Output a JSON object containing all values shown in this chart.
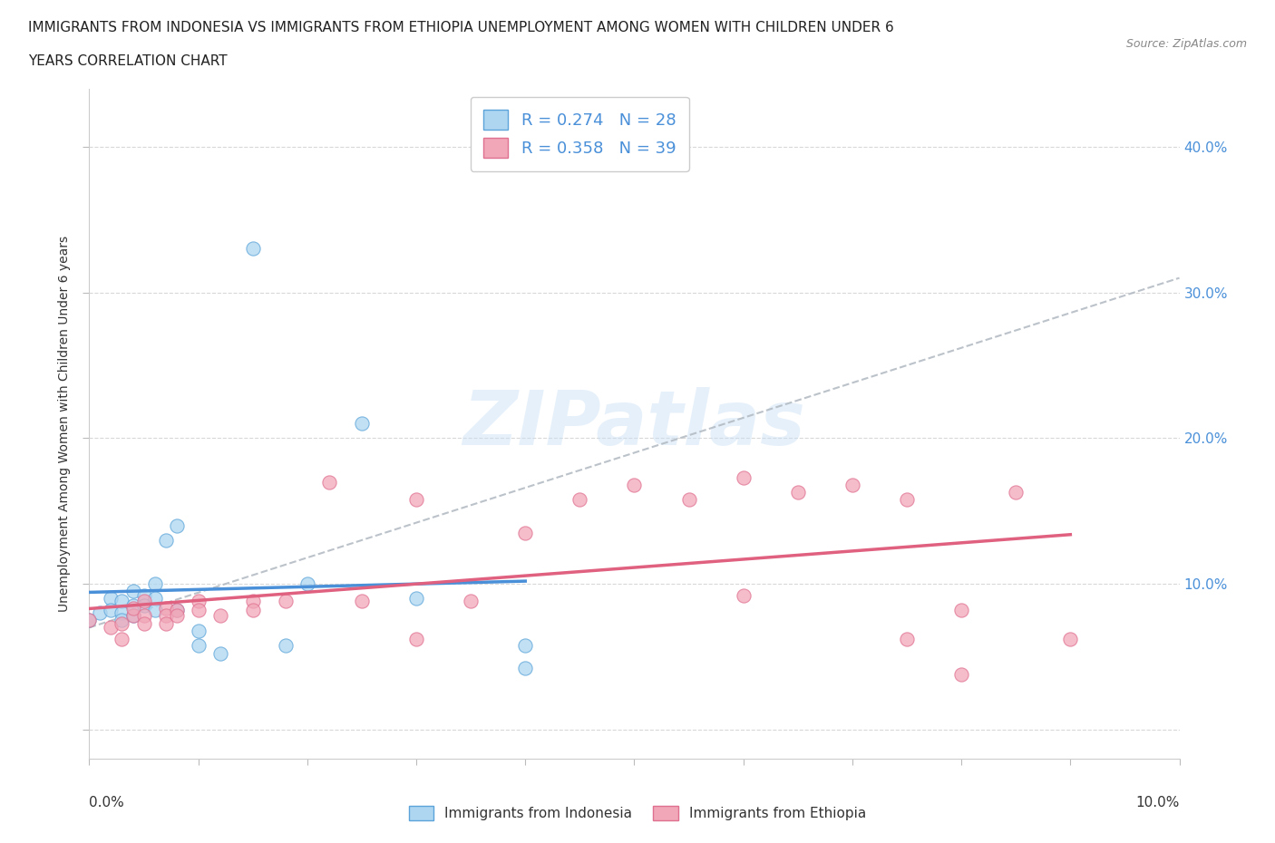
{
  "title_line1": "IMMIGRANTS FROM INDONESIA VS IMMIGRANTS FROM ETHIOPIA UNEMPLOYMENT AMONG WOMEN WITH CHILDREN UNDER 6",
  "title_line2": "YEARS CORRELATION CHART",
  "source_text": "Source: ZipAtlas.com",
  "ylabel": "Unemployment Among Women with Children Under 6 years",
  "xlim": [
    0.0,
    0.1
  ],
  "ylim": [
    -0.02,
    0.44
  ],
  "legend_r1": "R = 0.274   N = 28",
  "legend_r2": "R = 0.358   N = 39",
  "indonesia_color": "#aed6f1",
  "ethiopia_color": "#f1a7b8",
  "indonesia_edge_color": "#5ba3d9",
  "ethiopia_edge_color": "#e07090",
  "indonesia_line_color": "#4a90d9",
  "ethiopia_line_color": "#e06080",
  "watermark": "ZIPatlas",
  "indonesia_scatter": [
    [
      0.0,
      0.075
    ],
    [
      0.001,
      0.08
    ],
    [
      0.002,
      0.09
    ],
    [
      0.002,
      0.082
    ],
    [
      0.003,
      0.088
    ],
    [
      0.003,
      0.08
    ],
    [
      0.003,
      0.075
    ],
    [
      0.004,
      0.095
    ],
    [
      0.004,
      0.085
    ],
    [
      0.004,
      0.078
    ],
    [
      0.005,
      0.092
    ],
    [
      0.005,
      0.085
    ],
    [
      0.006,
      0.1
    ],
    [
      0.006,
      0.09
    ],
    [
      0.006,
      0.082
    ],
    [
      0.007,
      0.13
    ],
    [
      0.008,
      0.14
    ],
    [
      0.008,
      0.082
    ],
    [
      0.01,
      0.068
    ],
    [
      0.01,
      0.058
    ],
    [
      0.012,
      0.052
    ],
    [
      0.015,
      0.33
    ],
    [
      0.018,
      0.058
    ],
    [
      0.02,
      0.1
    ],
    [
      0.025,
      0.21
    ],
    [
      0.03,
      0.09
    ],
    [
      0.04,
      0.042
    ],
    [
      0.04,
      0.058
    ]
  ],
  "ethiopia_scatter": [
    [
      0.0,
      0.075
    ],
    [
      0.002,
      0.07
    ],
    [
      0.003,
      0.062
    ],
    [
      0.003,
      0.073
    ],
    [
      0.004,
      0.078
    ],
    [
      0.004,
      0.083
    ],
    [
      0.005,
      0.088
    ],
    [
      0.005,
      0.078
    ],
    [
      0.005,
      0.073
    ],
    [
      0.007,
      0.083
    ],
    [
      0.007,
      0.078
    ],
    [
      0.007,
      0.073
    ],
    [
      0.008,
      0.082
    ],
    [
      0.008,
      0.078
    ],
    [
      0.01,
      0.088
    ],
    [
      0.01,
      0.082
    ],
    [
      0.012,
      0.078
    ],
    [
      0.015,
      0.088
    ],
    [
      0.015,
      0.082
    ],
    [
      0.018,
      0.088
    ],
    [
      0.022,
      0.17
    ],
    [
      0.025,
      0.088
    ],
    [
      0.03,
      0.062
    ],
    [
      0.03,
      0.158
    ],
    [
      0.035,
      0.088
    ],
    [
      0.04,
      0.135
    ],
    [
      0.045,
      0.158
    ],
    [
      0.05,
      0.168
    ],
    [
      0.055,
      0.158
    ],
    [
      0.06,
      0.173
    ],
    [
      0.06,
      0.092
    ],
    [
      0.065,
      0.163
    ],
    [
      0.07,
      0.168
    ],
    [
      0.075,
      0.062
    ],
    [
      0.075,
      0.158
    ],
    [
      0.08,
      0.038
    ],
    [
      0.08,
      0.082
    ],
    [
      0.085,
      0.163
    ],
    [
      0.09,
      0.062
    ]
  ],
  "background_color": "#ffffff",
  "grid_color": "#d8d8d8",
  "grid_style": "--",
  "ytick_values": [
    0.0,
    0.1,
    0.2,
    0.3,
    0.4
  ],
  "ytick_labels": [
    "",
    "10.0%",
    "20.0%",
    "30.0%",
    "40.0%"
  ],
  "xtick_values": [
    0.0,
    0.01,
    0.02,
    0.03,
    0.04,
    0.05,
    0.06,
    0.07,
    0.08,
    0.09,
    0.1
  ]
}
